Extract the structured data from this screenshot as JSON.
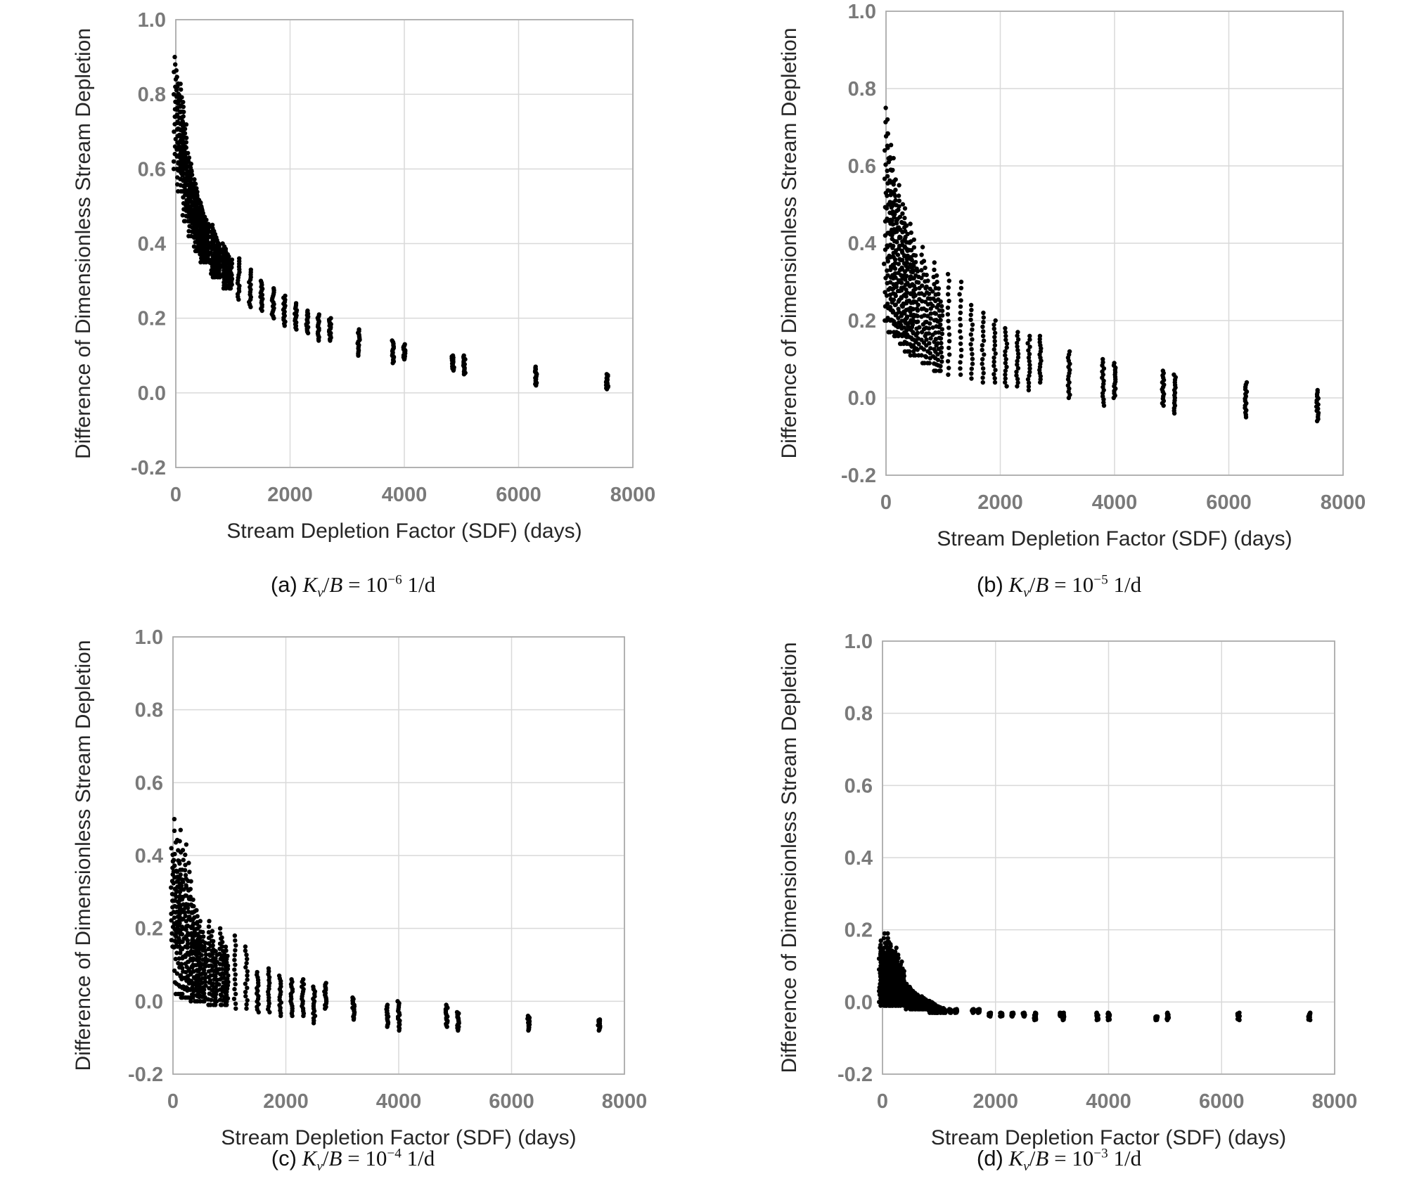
{
  "chart_data": [
    {
      "type": "scatter",
      "panel": "a",
      "caption_prefix": "(a)",
      "caption_exponent": "−6",
      "xlabel": "Stream Depletion Factor (SDF) (days)",
      "ylabel": "Difference of Dimensionless Stream Depletion",
      "xlim": [
        0,
        8000
      ],
      "ylim": [
        -0.2,
        1.0
      ],
      "xticks": [
        "0",
        "2000",
        "4000",
        "6000",
        "8000"
      ],
      "yticks": [
        "-0.2",
        "0.0",
        "0.2",
        "0.4",
        "0.6",
        "0.8",
        "1.0"
      ],
      "grid": true,
      "series": [
        {
          "x": [
            50,
            100,
            200,
            300,
            400,
            500,
            700,
            900,
            1100,
            1300,
            1500,
            1700,
            1900,
            2100,
            2300,
            2500,
            2700,
            3200,
            3800,
            4000,
            4850,
            5050,
            6300,
            7550
          ],
          "y_max": [
            0.9,
            0.82,
            0.7,
            0.62,
            0.56,
            0.51,
            0.45,
            0.4,
            0.36,
            0.33,
            0.3,
            0.28,
            0.26,
            0.24,
            0.22,
            0.21,
            0.2,
            0.17,
            0.14,
            0.13,
            0.1,
            0.1,
            0.07,
            0.05
          ],
          "y_min": [
            0.6,
            0.54,
            0.46,
            0.42,
            0.38,
            0.35,
            0.31,
            0.28,
            0.25,
            0.23,
            0.22,
            0.2,
            0.18,
            0.17,
            0.16,
            0.14,
            0.14,
            0.1,
            0.08,
            0.09,
            0.06,
            0.05,
            0.02,
            0.01
          ]
        }
      ]
    },
    {
      "type": "scatter",
      "panel": "b",
      "caption_prefix": "(b)",
      "caption_exponent": "−5",
      "xlabel": "Stream Depletion Factor (SDF) (days)",
      "ylabel": "Difference of Dimensionless Stream Depletion",
      "xlim": [
        0,
        8000
      ],
      "ylim": [
        -0.2,
        1.0
      ],
      "xticks": [
        "0",
        "2000",
        "4000",
        "6000",
        "8000"
      ],
      "yticks": [
        "-0.2",
        "0.0",
        "0.2",
        "0.4",
        "0.6",
        "0.8",
        "1.0"
      ],
      "grid": true,
      "series": [
        {
          "x": [
            50,
            100,
            200,
            300,
            400,
            500,
            700,
            900,
            1100,
            1300,
            1500,
            1700,
            1900,
            2100,
            2300,
            2500,
            2700,
            3200,
            3800,
            4000,
            4850,
            5050,
            6300,
            7550
          ],
          "y_max": [
            0.75,
            0.72,
            0.62,
            0.55,
            0.49,
            0.45,
            0.39,
            0.35,
            0.32,
            0.3,
            0.24,
            0.22,
            0.2,
            0.18,
            0.17,
            0.16,
            0.16,
            0.12,
            0.1,
            0.09,
            0.07,
            0.06,
            0.04,
            0.02
          ],
          "y_min": [
            0.2,
            0.17,
            0.16,
            0.14,
            0.12,
            0.11,
            0.09,
            0.07,
            0.06,
            0.06,
            0.05,
            0.04,
            0.04,
            0.03,
            0.03,
            0.02,
            0.04,
            0.0,
            -0.02,
            0.0,
            -0.02,
            -0.04,
            -0.05,
            -0.06
          ]
        }
      ]
    },
    {
      "type": "scatter",
      "panel": "c",
      "caption_prefix": "(c)",
      "caption_exponent": "−4",
      "xlabel": "Stream Depletion Factor (SDF) (days)",
      "ylabel": "Difference of Dimensionless Stream Depletion",
      "xlim": [
        0,
        8000
      ],
      "ylim": [
        -0.2,
        1.0
      ],
      "xticks": [
        "0",
        "2000",
        "4000",
        "6000",
        "8000"
      ],
      "yticks": [
        "-0.2",
        "0.0",
        "0.2",
        "0.4",
        "0.6",
        "0.8",
        "1.0"
      ],
      "grid": true,
      "series": [
        {
          "x": [
            50,
            100,
            200,
            300,
            400,
            500,
            700,
            900,
            1100,
            1300,
            1500,
            1700,
            1900,
            2100,
            2300,
            2500,
            2700,
            3200,
            3800,
            4000,
            4850,
            5050,
            6300,
            7550
          ],
          "y_max": [
            0.42,
            0.5,
            0.47,
            0.43,
            0.28,
            0.25,
            0.22,
            0.2,
            0.18,
            0.15,
            0.08,
            0.09,
            0.07,
            0.06,
            0.06,
            0.04,
            0.05,
            0.01,
            -0.01,
            0.0,
            -0.01,
            -0.03,
            -0.04,
            -0.05
          ],
          "y_min": [
            0.15,
            0.02,
            0.01,
            0.01,
            0.0,
            0.0,
            -0.01,
            -0.01,
            -0.02,
            -0.02,
            -0.03,
            -0.03,
            -0.04,
            -0.04,
            -0.04,
            -0.06,
            -0.02,
            -0.05,
            -0.07,
            -0.08,
            -0.07,
            -0.08,
            -0.08,
            -0.08
          ]
        }
      ]
    },
    {
      "type": "scatter",
      "panel": "d",
      "caption_prefix": "(d)",
      "caption_exponent": "−3",
      "xlabel": "Stream Depletion Factor (SDF) (days)",
      "ylabel": "Difference of Dimensionless Stream Depletion",
      "xlim": [
        0,
        8000
      ],
      "ylim": [
        -0.2,
        1.0
      ],
      "xticks": [
        "0",
        "2000",
        "4000",
        "6000",
        "8000"
      ],
      "yticks": [
        "-0.2",
        "0.0",
        "0.2",
        "0.4",
        "0.6",
        "0.8",
        "1.0"
      ],
      "grid": true,
      "series": [
        {
          "x": [
            20,
            50,
            100,
            150,
            200,
            300,
            400,
            500,
            600,
            700,
            800,
            900,
            1000,
            1100,
            1200,
            1300,
            1600,
            1700,
            1900,
            2100,
            2300,
            2500,
            2700,
            3150,
            3200,
            3800,
            4000,
            4850,
            5050,
            6300,
            7550
          ],
          "y_max": [
            0.15,
            0.17,
            0.19,
            0.19,
            0.16,
            0.15,
            0.06,
            0.05,
            0.03,
            0.02,
            0.01,
            0.0,
            -0.01,
            -0.02,
            -0.02,
            -0.02,
            -0.02,
            -0.02,
            -0.03,
            -0.03,
            -0.03,
            -0.03,
            -0.03,
            -0.03,
            -0.03,
            -0.03,
            -0.03,
            -0.04,
            -0.03,
            -0.03,
            -0.03
          ],
          "y_min": [
            0.0,
            -0.01,
            -0.01,
            -0.01,
            -0.01,
            -0.01,
            -0.01,
            -0.02,
            -0.02,
            -0.02,
            -0.02,
            -0.03,
            -0.03,
            -0.03,
            -0.03,
            -0.03,
            -0.03,
            -0.03,
            -0.04,
            -0.04,
            -0.04,
            -0.04,
            -0.05,
            -0.04,
            -0.05,
            -0.05,
            -0.05,
            -0.05,
            -0.05,
            -0.05,
            -0.05
          ]
        }
      ]
    }
  ]
}
